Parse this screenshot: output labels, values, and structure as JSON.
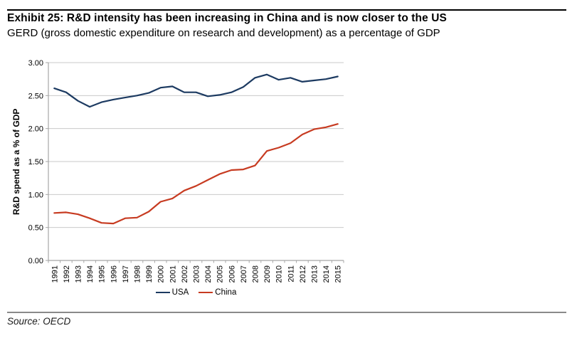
{
  "page": {
    "title": "Exhibit 25: R&D intensity has been increasing in China and is now closer to the US",
    "subtitle": "GERD (gross domestic expenditure on research and development) as a percentage of GDP",
    "source": "Source: OECD"
  },
  "colors": {
    "usa_line": "#1C3A61",
    "china_line": "#C73B21",
    "grid": "#C9C9C9",
    "axis": "#A6A6A6",
    "top_rule": "#000000",
    "bottom_rule": "#8A8A8A"
  },
  "chart_data": {
    "type": "line",
    "title": "",
    "xlabel": "",
    "ylabel": "R&D spend as a % of GDP",
    "ylim": [
      0,
      3
    ],
    "ytick_step": 0.5,
    "ytick_labels": [
      "0.00",
      "0.50",
      "1.00",
      "1.50",
      "2.00",
      "2.50",
      "3.00"
    ],
    "grid": "horizontal",
    "legend_position": "bottom",
    "categories": [
      1991,
      1992,
      1993,
      1994,
      1995,
      1996,
      1997,
      1998,
      1999,
      2000,
      2001,
      2002,
      2003,
      2004,
      2005,
      2006,
      2007,
      2008,
      2009,
      2010,
      2011,
      2012,
      2013,
      2014,
      2015
    ],
    "series": [
      {
        "name": "USA",
        "color": "#1C3A61",
        "values": [
          2.61,
          2.55,
          2.42,
          2.33,
          2.4,
          2.44,
          2.47,
          2.5,
          2.54,
          2.62,
          2.64,
          2.55,
          2.55,
          2.49,
          2.51,
          2.55,
          2.63,
          2.77,
          2.82,
          2.74,
          2.77,
          2.71,
          2.73,
          2.75,
          2.79
        ]
      },
      {
        "name": "China",
        "color": "#C73B21",
        "values": [
          0.72,
          0.73,
          0.7,
          0.64,
          0.57,
          0.56,
          0.64,
          0.65,
          0.74,
          0.89,
          0.94,
          1.06,
          1.13,
          1.22,
          1.31,
          1.37,
          1.38,
          1.44,
          1.66,
          1.71,
          1.78,
          1.91,
          1.99,
          2.02,
          2.07
        ]
      }
    ]
  }
}
